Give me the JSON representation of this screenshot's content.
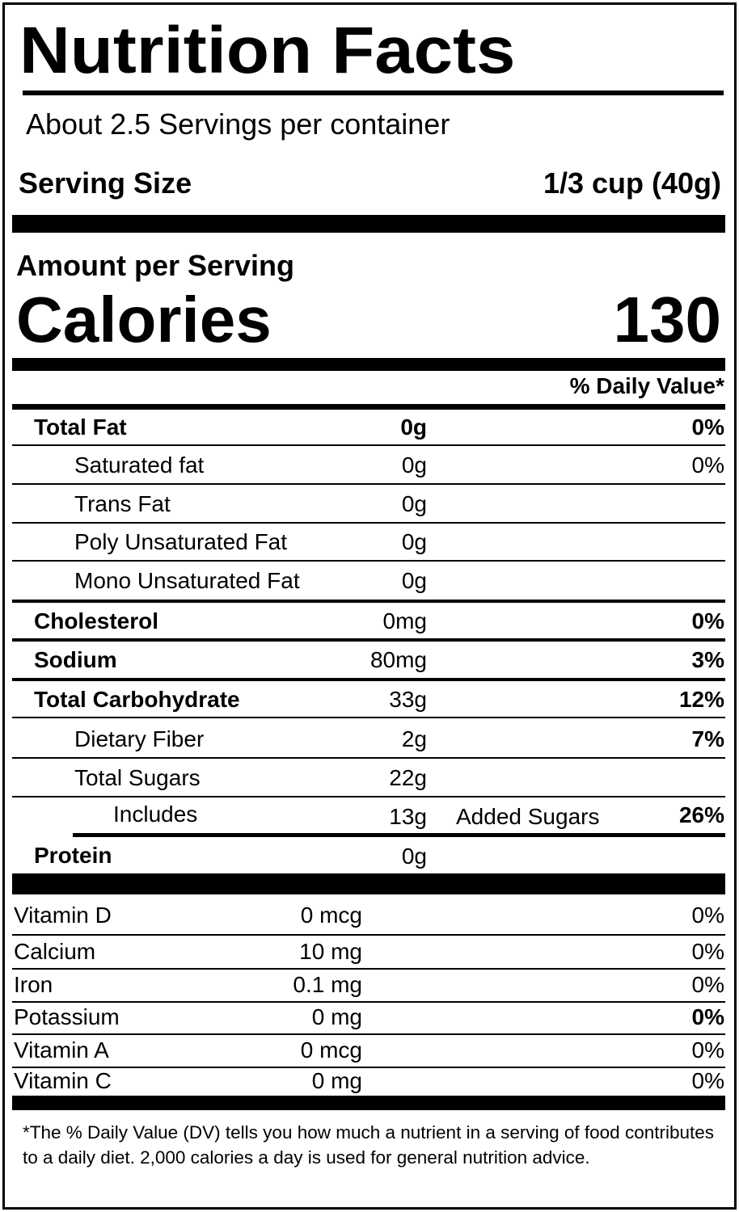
{
  "title": "Nutrition Facts",
  "servings_per_container": "About 2.5 Servings per container",
  "serving_size": {
    "label": "Serving Size",
    "value": "1/3 cup (40g)"
  },
  "amount_per_serving": "Amount per Serving",
  "calories": {
    "label": "Calories",
    "value": "130"
  },
  "daily_value_header": "% Daily Value*",
  "nutrients": [
    {
      "name": "Total Fat",
      "amount": "0g",
      "dv": "0%"
    },
    {
      "name": "Saturated fat",
      "amount": "0g",
      "dv": "0%"
    },
    {
      "name": "Trans  Fat",
      "amount": "0g",
      "dv": ""
    },
    {
      "name": "Poly Unsaturated Fat",
      "amount": "0g",
      "dv": ""
    },
    {
      "name": "Mono Unsaturated Fat",
      "amount": "0g",
      "dv": ""
    },
    {
      "name": "Cholesterol",
      "amount": "0mg",
      "dv": "0%"
    },
    {
      "name": "Sodium",
      "amount": "80mg",
      "dv": "3%"
    },
    {
      "name": "Total Carbohydrate",
      "amount": "33g",
      "dv": "12%"
    },
    {
      "name": "Dietary Fiber",
      "amount": "2g",
      "dv": "7%"
    },
    {
      "name": "Total Sugars",
      "amount": "22g",
      "dv": ""
    }
  ],
  "added_sugars": {
    "label": "Includes",
    "amount": "13g",
    "text": "Added Sugars",
    "dv": "26%"
  },
  "protein": {
    "name": "Protein",
    "amount": "0g"
  },
  "vitamins": [
    {
      "name": "Vitamin D",
      "amount": "0 mcg",
      "dv": "0%"
    },
    {
      "name": "Calcium",
      "amount": "10 mg",
      "dv": "0%"
    },
    {
      "name": "Iron",
      "amount": "0.1 mg",
      "dv": "0%"
    },
    {
      "name": "Potassium",
      "amount": "0 mg",
      "dv": "0%"
    },
    {
      "name": "Vitamin A",
      "amount": "0 mcg",
      "dv": "0%"
    },
    {
      "name": "Vitamin C",
      "amount": "0 mg",
      "dv": "0%"
    }
  ],
  "footnote": "*The % Daily Value (DV) tells you how much a nutrient in a serving of food contributes to a daily diet. 2,000 calories a day is used for general nutrition advice."
}
